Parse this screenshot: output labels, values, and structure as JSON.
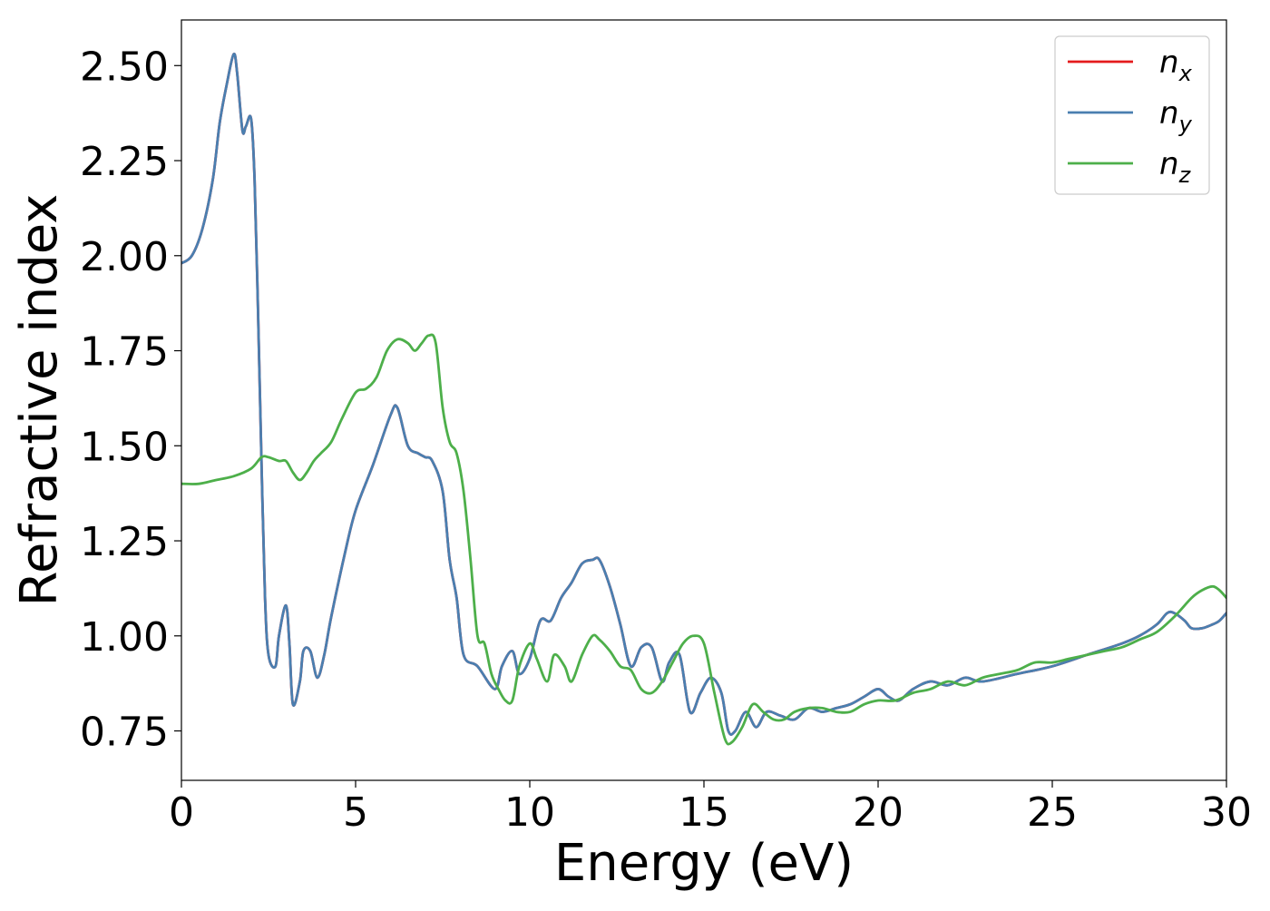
{
  "chart_data": {
    "type": "line",
    "title": "",
    "xlabel": "Energy (eV)",
    "ylabel": "Refractive index",
    "xlim": [
      0,
      30
    ],
    "ylim": [
      0.62,
      2.62
    ],
    "xticks": [
      0,
      5,
      10,
      15,
      20,
      25,
      30
    ],
    "xtick_labels": [
      "0",
      "5",
      "10",
      "15",
      "20",
      "25",
      "30"
    ],
    "yticks": [
      0.75,
      1.0,
      1.25,
      1.5,
      1.75,
      2.0,
      2.25,
      2.5
    ],
    "ytick_labels": [
      "0.75",
      "1.00",
      "1.25",
      "1.50",
      "1.75",
      "2.00",
      "2.25",
      "2.50"
    ],
    "grid": false,
    "legend_position": "top-right",
    "series": [
      {
        "name": "n_x",
        "legend_base": "n",
        "legend_sub": "x",
        "color": "#e41a1c",
        "x": [
          0,
          0.3,
          0.6,
          0.9,
          1.1,
          1.3,
          1.5,
          1.6,
          1.75,
          1.85,
          2.0,
          2.1,
          2.2,
          2.3,
          2.4,
          2.5,
          2.7,
          2.8,
          3.0,
          3.1,
          3.2,
          3.4,
          3.5,
          3.7,
          3.9,
          4.1,
          4.3,
          4.7,
          5.0,
          5.5,
          6.0,
          6.2,
          6.5,
          6.8,
          7.0,
          7.2,
          7.5,
          7.7,
          7.9,
          8.1,
          8.5,
          9.0,
          9.2,
          9.5,
          9.7,
          10.0,
          10.3,
          10.6,
          10.9,
          11.2,
          11.5,
          11.8,
          12.0,
          12.3,
          12.6,
          12.9,
          13.2,
          13.5,
          13.8,
          14.0,
          14.3,
          14.6,
          14.9,
          15.2,
          15.5,
          15.7,
          15.9,
          16.2,
          16.5,
          16.8,
          17.2,
          17.6,
          18.0,
          18.4,
          18.8,
          19.2,
          19.6,
          20.0,
          20.3,
          20.6,
          21.0,
          21.5,
          22.0,
          22.5,
          23.0,
          24.0,
          25.0,
          26.0,
          27.0,
          27.5,
          28.0,
          28.3,
          28.5,
          28.8,
          29.0,
          29.3,
          29.6,
          29.8,
          30.0
        ],
        "values": [
          1.98,
          2.0,
          2.07,
          2.2,
          2.35,
          2.45,
          2.53,
          2.48,
          2.33,
          2.34,
          2.36,
          2.2,
          1.85,
          1.45,
          1.1,
          0.95,
          0.92,
          1.0,
          1.08,
          0.98,
          0.82,
          0.88,
          0.96,
          0.96,
          0.89,
          0.95,
          1.05,
          1.22,
          1.33,
          1.45,
          1.58,
          1.6,
          1.5,
          1.48,
          1.47,
          1.46,
          1.38,
          1.2,
          1.1,
          0.95,
          0.92,
          0.86,
          0.92,
          0.96,
          0.9,
          0.94,
          1.04,
          1.04,
          1.1,
          1.14,
          1.19,
          1.2,
          1.2,
          1.13,
          1.03,
          0.92,
          0.97,
          0.97,
          0.88,
          0.93,
          0.95,
          0.8,
          0.85,
          0.89,
          0.85,
          0.75,
          0.75,
          0.8,
          0.76,
          0.8,
          0.79,
          0.78,
          0.81,
          0.8,
          0.81,
          0.82,
          0.84,
          0.86,
          0.84,
          0.83,
          0.86,
          0.88,
          0.87,
          0.89,
          0.88,
          0.9,
          0.92,
          0.95,
          0.98,
          1.0,
          1.03,
          1.06,
          1.06,
          1.04,
          1.02,
          1.02,
          1.03,
          1.04,
          1.06
        ]
      },
      {
        "name": "n_y",
        "legend_base": "n",
        "legend_sub": "y",
        "color": "#4a7fb0",
        "x": [
          0,
          0.3,
          0.6,
          0.9,
          1.1,
          1.3,
          1.5,
          1.6,
          1.75,
          1.85,
          2.0,
          2.1,
          2.2,
          2.3,
          2.4,
          2.5,
          2.7,
          2.8,
          3.0,
          3.1,
          3.2,
          3.4,
          3.5,
          3.7,
          3.9,
          4.1,
          4.3,
          4.7,
          5.0,
          5.5,
          6.0,
          6.2,
          6.5,
          6.8,
          7.0,
          7.2,
          7.5,
          7.7,
          7.9,
          8.1,
          8.5,
          9.0,
          9.2,
          9.5,
          9.7,
          10.0,
          10.3,
          10.6,
          10.9,
          11.2,
          11.5,
          11.8,
          12.0,
          12.3,
          12.6,
          12.9,
          13.2,
          13.5,
          13.8,
          14.0,
          14.3,
          14.6,
          14.9,
          15.2,
          15.5,
          15.7,
          15.9,
          16.2,
          16.5,
          16.8,
          17.2,
          17.6,
          18.0,
          18.4,
          18.8,
          19.2,
          19.6,
          20.0,
          20.3,
          20.6,
          21.0,
          21.5,
          22.0,
          22.5,
          23.0,
          24.0,
          25.0,
          26.0,
          27.0,
          27.5,
          28.0,
          28.3,
          28.5,
          28.8,
          29.0,
          29.3,
          29.6,
          29.8,
          30.0
        ],
        "values": [
          1.98,
          2.0,
          2.07,
          2.2,
          2.35,
          2.45,
          2.53,
          2.48,
          2.33,
          2.34,
          2.36,
          2.2,
          1.85,
          1.45,
          1.1,
          0.95,
          0.92,
          1.0,
          1.08,
          0.98,
          0.82,
          0.88,
          0.96,
          0.96,
          0.89,
          0.95,
          1.05,
          1.22,
          1.33,
          1.45,
          1.58,
          1.6,
          1.5,
          1.48,
          1.47,
          1.46,
          1.38,
          1.2,
          1.1,
          0.95,
          0.92,
          0.86,
          0.92,
          0.96,
          0.9,
          0.94,
          1.04,
          1.04,
          1.1,
          1.14,
          1.19,
          1.2,
          1.2,
          1.13,
          1.03,
          0.92,
          0.97,
          0.97,
          0.88,
          0.93,
          0.95,
          0.8,
          0.85,
          0.89,
          0.85,
          0.75,
          0.75,
          0.8,
          0.76,
          0.8,
          0.79,
          0.78,
          0.81,
          0.8,
          0.81,
          0.82,
          0.84,
          0.86,
          0.84,
          0.83,
          0.86,
          0.88,
          0.87,
          0.89,
          0.88,
          0.9,
          0.92,
          0.95,
          0.98,
          1.0,
          1.03,
          1.06,
          1.06,
          1.04,
          1.02,
          1.02,
          1.03,
          1.04,
          1.06
        ]
      },
      {
        "name": "n_z",
        "legend_base": "n",
        "legend_sub": "z",
        "color": "#4daf4a",
        "x": [
          0,
          0.5,
          1.0,
          1.5,
          2.0,
          2.3,
          2.5,
          2.8,
          3.0,
          3.2,
          3.4,
          3.6,
          3.8,
          4.0,
          4.3,
          4.6,
          5.0,
          5.3,
          5.6,
          5.9,
          6.2,
          6.5,
          6.7,
          6.9,
          7.1,
          7.3,
          7.5,
          7.7,
          7.9,
          8.1,
          8.3,
          8.5,
          8.7,
          8.9,
          9.1,
          9.3,
          9.5,
          9.7,
          10.0,
          10.2,
          10.5,
          10.7,
          11.0,
          11.2,
          11.5,
          11.8,
          12.0,
          12.3,
          12.6,
          12.9,
          13.2,
          13.5,
          13.8,
          14.1,
          14.4,
          14.7,
          15.0,
          15.3,
          15.6,
          15.8,
          16.1,
          16.4,
          16.7,
          17.0,
          17.3,
          17.6,
          18.0,
          18.4,
          18.8,
          19.2,
          19.6,
          20.0,
          20.5,
          21.0,
          21.5,
          22.0,
          22.5,
          23.0,
          23.5,
          24.0,
          24.5,
          25.0,
          25.5,
          26.0,
          26.5,
          27.0,
          27.5,
          28.0,
          28.5,
          29.0,
          29.3,
          29.6,
          29.8,
          30.0
        ],
        "values": [
          1.4,
          1.4,
          1.41,
          1.42,
          1.44,
          1.47,
          1.47,
          1.46,
          1.46,
          1.43,
          1.41,
          1.43,
          1.46,
          1.48,
          1.51,
          1.57,
          1.64,
          1.65,
          1.68,
          1.75,
          1.78,
          1.77,
          1.75,
          1.77,
          1.79,
          1.77,
          1.6,
          1.51,
          1.48,
          1.38,
          1.2,
          1.0,
          0.98,
          0.9,
          0.86,
          0.83,
          0.83,
          0.92,
          0.98,
          0.94,
          0.88,
          0.95,
          0.92,
          0.88,
          0.95,
          1.0,
          0.99,
          0.96,
          0.92,
          0.91,
          0.86,
          0.85,
          0.88,
          0.93,
          0.98,
          1.0,
          0.98,
          0.85,
          0.73,
          0.72,
          0.76,
          0.82,
          0.8,
          0.78,
          0.78,
          0.8,
          0.81,
          0.81,
          0.8,
          0.8,
          0.82,
          0.83,
          0.83,
          0.85,
          0.86,
          0.88,
          0.87,
          0.89,
          0.9,
          0.91,
          0.93,
          0.93,
          0.94,
          0.95,
          0.96,
          0.97,
          0.99,
          1.01,
          1.05,
          1.1,
          1.12,
          1.13,
          1.12,
          1.1
        ]
      }
    ]
  }
}
